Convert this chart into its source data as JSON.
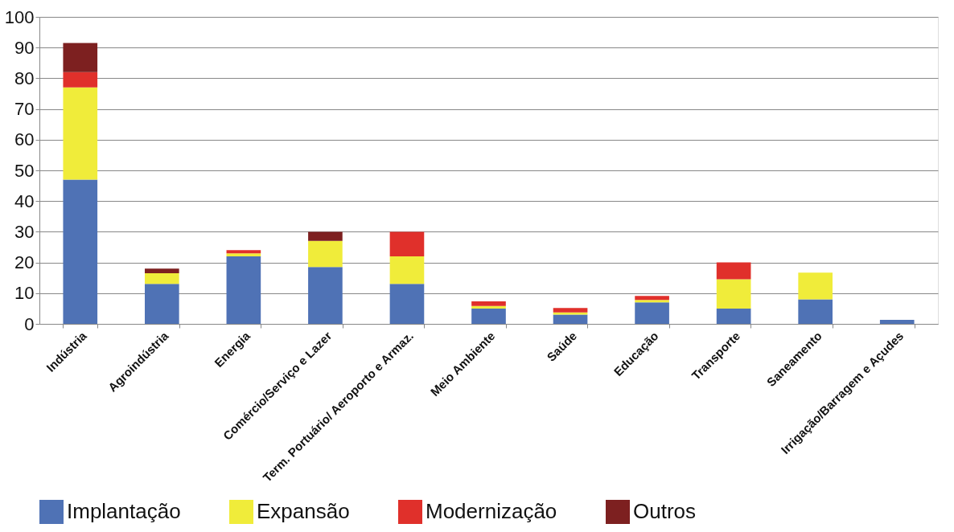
{
  "chart_data": {
    "type": "bar",
    "stacked": true,
    "categories": [
      "Indústria",
      "Agroindústria",
      "Energia",
      "Comércio/Serviço e Lazer",
      "Term. Portuário/ Aeroporto e Armaz.",
      "Meio Ambiente",
      "Saúde",
      "Educação",
      "Transporte",
      "Saneamento",
      "Irrigação/Barragem e Açudes"
    ],
    "series": [
      {
        "name": "Implantação",
        "color": "#4f72b5",
        "values": [
          47,
          13,
          22,
          18.5,
          13,
          5,
          3,
          7,
          5,
          8,
          1.3
        ]
      },
      {
        "name": "Expansão",
        "color": "#f0ec3a",
        "values": [
          30,
          3.5,
          1,
          8.5,
          9,
          0.8,
          0.7,
          0.8,
          9.5,
          8.7,
          0
        ]
      },
      {
        "name": "Modernização",
        "color": "#e0302b",
        "values": [
          5,
          0,
          1,
          0,
          8,
          1.5,
          1.5,
          1.3,
          5.5,
          0,
          0
        ]
      },
      {
        "name": "Outros",
        "color": "#7d2020",
        "values": [
          9.5,
          1.5,
          0,
          3,
          0,
          0,
          0,
          0,
          0,
          0,
          0
        ]
      }
    ],
    "ylim": [
      0,
      100
    ],
    "yticks": [
      0,
      10,
      20,
      30,
      40,
      50,
      60,
      70,
      80,
      90,
      100
    ],
    "grid": "y",
    "legend": "bottom"
  }
}
